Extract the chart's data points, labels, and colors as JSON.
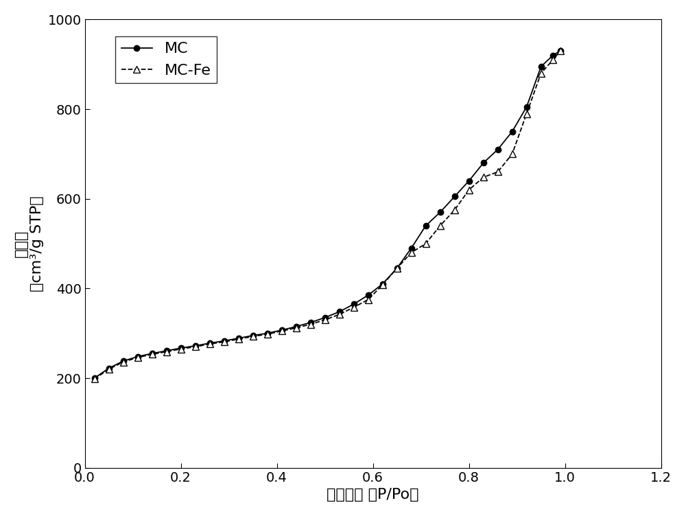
{
  "MC_x": [
    0.02,
    0.05,
    0.08,
    0.11,
    0.14,
    0.17,
    0.2,
    0.23,
    0.26,
    0.29,
    0.32,
    0.35,
    0.38,
    0.41,
    0.44,
    0.47,
    0.5,
    0.53,
    0.56,
    0.59,
    0.62,
    0.65,
    0.68,
    0.71,
    0.74,
    0.77,
    0.8,
    0.83,
    0.86,
    0.89,
    0.92,
    0.95,
    0.975,
    0.99
  ],
  "MC_y": [
    200,
    222,
    238,
    248,
    255,
    261,
    267,
    272,
    278,
    283,
    289,
    295,
    300,
    307,
    315,
    324,
    335,
    348,
    365,
    385,
    410,
    445,
    490,
    540,
    570,
    605,
    640,
    680,
    710,
    750,
    805,
    895,
    920,
    930
  ],
  "MCFe_x": [
    0.02,
    0.05,
    0.08,
    0.11,
    0.14,
    0.17,
    0.2,
    0.23,
    0.26,
    0.29,
    0.32,
    0.35,
    0.38,
    0.41,
    0.44,
    0.47,
    0.5,
    0.53,
    0.56,
    0.59,
    0.62,
    0.65,
    0.68,
    0.71,
    0.74,
    0.77,
    0.8,
    0.83,
    0.86,
    0.89,
    0.92,
    0.95,
    0.975,
    0.99
  ],
  "MCFe_y": [
    198,
    220,
    236,
    246,
    253,
    259,
    265,
    270,
    276,
    281,
    287,
    293,
    298,
    305,
    312,
    320,
    330,
    342,
    358,
    375,
    408,
    445,
    480,
    500,
    540,
    575,
    620,
    648,
    660,
    700,
    790,
    880,
    910,
    930
  ],
  "xlabel": "相对压力 （P/Po）",
  "ylabel_line1": "吸附量",
  "ylabel_line2": "（cm³/g STP）",
  "xlim": [
    0.0,
    1.2
  ],
  "ylim": [
    0,
    1000
  ],
  "xticks": [
    0.0,
    0.2,
    0.4,
    0.6,
    0.8,
    1.0,
    1.2
  ],
  "yticks": [
    0,
    200,
    400,
    600,
    800,
    1000
  ],
  "legend_MC": "MC",
  "legend_MCFe": "MC-Fe",
  "line_color": "#000000",
  "bg_color": "#ffffff",
  "label_fontsize": 16,
  "tick_fontsize": 14
}
